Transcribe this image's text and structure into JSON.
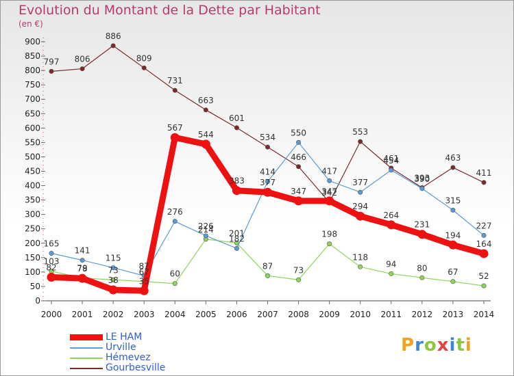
{
  "title": "Evolution du Montant de la Dette par Habitant",
  "subtitle": "(en €)",
  "logo": {
    "letters": [
      {
        "ch": "P",
        "color": "#f0a21e"
      },
      {
        "ch": "r",
        "color": "#3b87d6"
      },
      {
        "ch": "o",
        "color": "#8dc63f"
      },
      {
        "ch": "x",
        "color": "#e3443b"
      },
      {
        "ch": "i",
        "color": "#3b87d6"
      },
      {
        "ch": "t",
        "color": "#8dc63f"
      },
      {
        "ch": "i",
        "color": "#f0a21e"
      }
    ]
  },
  "legend": [
    {
      "label": "LE HAM",
      "color": "#ee1111",
      "width": "thick"
    },
    {
      "label": "Urville",
      "color": "#5b9bd5",
      "width": "thin"
    },
    {
      "label": "Hémevez",
      "color": "#8fd45a",
      "width": "thin"
    },
    {
      "label": "Gourbesville",
      "color": "#7a2a2a",
      "width": "thin"
    }
  ],
  "chart_data": {
    "type": "line",
    "title": "Evolution du Montant de la Dette par Habitant",
    "ylabel": "(en €)",
    "x": [
      "2000",
      "2001",
      "2002",
      "2003",
      "2004",
      "2005",
      "2006",
      "2007",
      "2008",
      "2009",
      "2010",
      "2011",
      "2012",
      "2013",
      "2014"
    ],
    "ylim": [
      0,
      900
    ],
    "yticks": [
      0,
      50,
      100,
      150,
      200,
      250,
      300,
      350,
      400,
      450,
      500,
      550,
      600,
      650,
      700,
      750,
      800,
      850,
      900
    ],
    "grid": false,
    "legend_position": "bottom-left",
    "series": [
      {
        "name": "LE HAM",
        "color": "#ee1111",
        "values": [
          82,
          78,
          38,
          35,
          567,
          544,
          383,
          377,
          347,
          347,
          294,
          264,
          231,
          194,
          164
        ],
        "labels": [
          "82",
          "78",
          "38",
          "35",
          "567",
          "544",
          "383",
          "377",
          "347",
          "347",
          "294",
          "264",
          "231",
          "194",
          "164"
        ]
      },
      {
        "name": "Urville",
        "color": "#5b9bd5",
        "values": [
          165,
          141,
          115,
          87,
          276,
          226,
          182,
          414,
          550,
          417,
          377,
          454,
          390,
          315,
          227
        ],
        "labels": [
          "165",
          "141",
          "115",
          "87",
          "276",
          "226",
          "182",
          "414",
          "550",
          "417",
          "377",
          "454",
          "390",
          "315",
          "227"
        ]
      },
      {
        "name": "Hémevez",
        "color": "#8fd45a",
        "values": [
          103,
          79,
          73,
          67,
          60,
          214,
          201,
          87,
          73,
          198,
          118,
          94,
          80,
          67,
          52
        ],
        "labels": [
          "103",
          "79",
          "73",
          "67",
          "60",
          "214",
          "201",
          "87",
          "73",
          "198",
          "118",
          "94",
          "80",
          "67",
          "52"
        ]
      },
      {
        "name": "Gourbesville",
        "color": "#7a2a2a",
        "values": [
          797,
          806,
          886,
          809,
          731,
          663,
          601,
          534,
          466,
          342,
          553,
          461,
          393,
          463,
          411
        ],
        "labels": [
          "797",
          "806",
          "886",
          "809",
          "731",
          "663",
          "601",
          "534",
          "466",
          "342",
          "553",
          "461",
          "393",
          "463",
          "411"
        ]
      }
    ]
  }
}
